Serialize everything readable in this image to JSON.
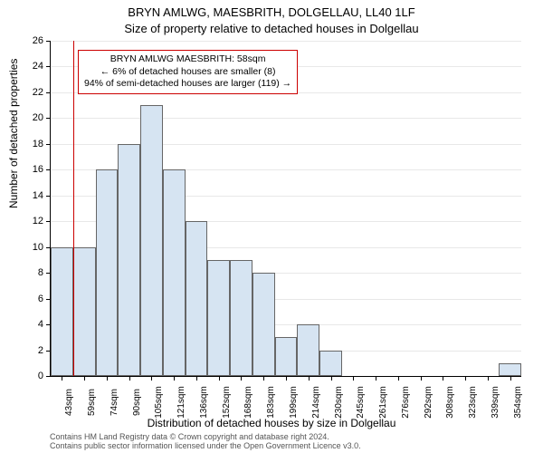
{
  "chart": {
    "type": "histogram",
    "title_main": "BRYN AMLWG, MAESBRITH, DOLGELLAU, LL40 1LF",
    "title_sub": "Size of property relative to detached houses in Dolgellau",
    "ylabel": "Number of detached properties",
    "xlabel": "Distribution of detached houses by size in Dolgellau",
    "title_fontsize": 13,
    "label_fontsize": 12,
    "tick_fontsize": 11,
    "ylim": [
      0,
      26
    ],
    "ytick_step": 2,
    "x_categories": [
      "43sqm",
      "59sqm",
      "74sqm",
      "90sqm",
      "105sqm",
      "121sqm",
      "136sqm",
      "152sqm",
      "168sqm",
      "183sqm",
      "199sqm",
      "214sqm",
      "230sqm",
      "245sqm",
      "261sqm",
      "276sqm",
      "292sqm",
      "308sqm",
      "323sqm",
      "339sqm",
      "354sqm"
    ],
    "values": [
      10,
      10,
      16,
      18,
      21,
      16,
      12,
      9,
      9,
      8,
      3,
      4,
      2,
      0,
      0,
      0,
      0,
      0,
      0,
      0,
      1
    ],
    "bar_fill_color": "#d6e4f2",
    "bar_border_color": "#666666",
    "background_color": "#ffffff",
    "grid_color": "#e8e8e8",
    "marker_line_color": "#cc0000",
    "marker_category_index": 1,
    "annotation": {
      "line1": "BRYN AMLWG MAESBRITH: 58sqm",
      "line2": "← 6% of detached houses are smaller (8)",
      "line3": "94% of semi-detached houses are larger (119) →",
      "border_color": "#cc0000"
    },
    "footer_line1": "Contains HM Land Registry data © Crown copyright and database right 2024.",
    "footer_line2": "Contains public sector information licensed under the Open Government Licence v3.0."
  }
}
